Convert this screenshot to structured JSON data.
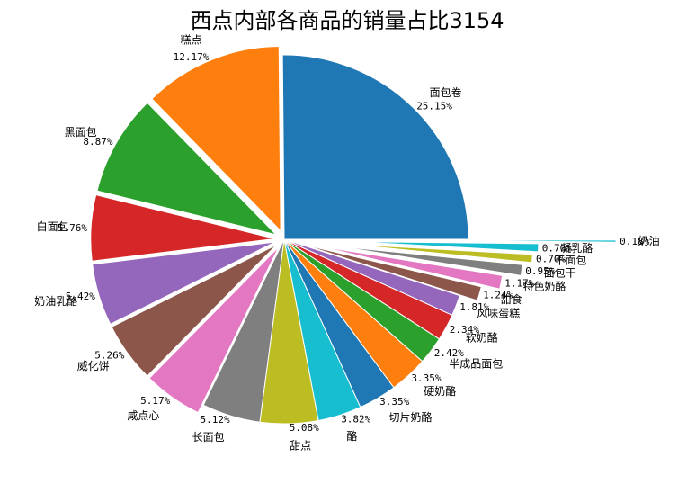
{
  "chart_data": {
    "type": "pie",
    "title": "西点内部各商品的销量占比3154",
    "slices": [
      {
        "label": "面包卷",
        "value": 25.15,
        "pct_label": "25.15%",
        "color": "#1f77b4",
        "explode": 0.0
      },
      {
        "label": "糕点",
        "value": 12.17,
        "pct_label": "12.17%",
        "color": "#ff7f0e",
        "explode": 0.05
      },
      {
        "label": "黑面包",
        "value": 8.87,
        "pct_label": "8.87%",
        "color": "#2ca02c",
        "explode": 0.05
      },
      {
        "label": "白面包",
        "value": 5.76,
        "pct_label": "5.76%",
        "color": "#d62728",
        "explode": 0.05
      },
      {
        "label": "奶油乳酪",
        "value": 5.42,
        "pct_label": "5.42%",
        "color": "#9467bd",
        "explode": 0.05
      },
      {
        "label": "威化饼",
        "value": 5.26,
        "pct_label": "5.26%",
        "color": "#8c564b",
        "explode": 0.05
      },
      {
        "label": "咸点心",
        "value": 5.17,
        "pct_label": "5.17%",
        "color": "#e377c2",
        "explode": 0.05
      },
      {
        "label": "长面包",
        "value": 5.12,
        "pct_label": "5.12%",
        "color": "#7f7f7f",
        "explode": 0.0
      },
      {
        "label": "甜点",
        "value": 5.08,
        "pct_label": "5.08%",
        "color": "#bcbd22",
        "explode": 0.0
      },
      {
        "label": "酪",
        "value": 3.82,
        "pct_label": "3.82%",
        "color": "#17becf",
        "explode": 0.0
      },
      {
        "label": "切片奶酪",
        "value": 3.35,
        "pct_label": "3.35%",
        "color": "#1f77b4",
        "explode": 0.0
      },
      {
        "label": "硬奶酪",
        "value": 3.35,
        "pct_label": "3.35%",
        "color": "#ff7f0e",
        "explode": 0.0
      },
      {
        "label": "半成品面包",
        "value": 2.42,
        "pct_label": "2.42%",
        "color": "#2ca02c",
        "explode": 0.0
      },
      {
        "label": "软奶酪",
        "value": 2.34,
        "pct_label": "2.34%",
        "color": "#d62728",
        "explode": 0.0
      },
      {
        "label": "风味蛋糕",
        "value": 1.81,
        "pct_label": "1.81%",
        "color": "#9467bd",
        "explode": 0.0
      },
      {
        "label": "甜食",
        "value": 1.24,
        "pct_label": "1.24%",
        "color": "#8c564b",
        "explode": 0.1
      },
      {
        "label": "特色奶酪",
        "value": 1.17,
        "pct_label": "1.17%",
        "color": "#e377c2",
        "explode": 0.2
      },
      {
        "label": "面包干",
        "value": 0.95,
        "pct_label": "0.95%",
        "color": "#7f7f7f",
        "explode": 0.3
      },
      {
        "label": "干面包",
        "value": 0.7,
        "pct_label": "0.70%",
        "color": "#bcbd22",
        "explode": 0.35
      },
      {
        "label": "凝乳酪",
        "value": 0.7,
        "pct_label": "0.70%",
        "color": "#17becf",
        "explode": 0.38
      },
      {
        "label": "奶油",
        "value": 0.18,
        "pct_label": "0.18%",
        "color": "#17becf",
        "explode": 0.8
      }
    ]
  }
}
